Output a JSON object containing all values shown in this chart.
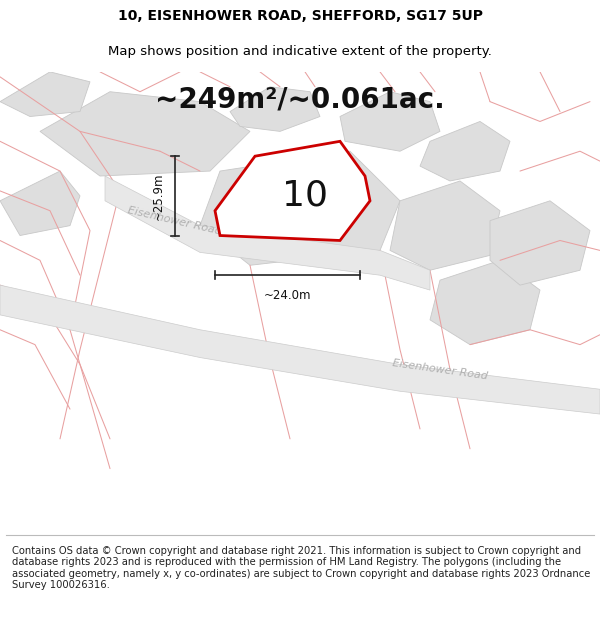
{
  "title_line1": "10, EISENHOWER ROAD, SHEFFORD, SG17 5UP",
  "title_line2": "Map shows position and indicative extent of the property.",
  "area_text": "~249m²/~0.061ac.",
  "dim_height": "~25.9m",
  "dim_width": "~24.0m",
  "plot_label": "10",
  "road_label1": "Eisenhower Road",
  "road_label2": "Eisenhower Road",
  "footer": "Contains OS data © Crown copyright and database right 2021. This information is subject to Crown copyright and database rights 2023 and is reproduced with the permission of HM Land Registry. The polygons (including the associated geometry, namely x, y co-ordinates) are subject to Crown copyright and database rights 2023 Ordnance Survey 100026316.",
  "bg_color": "#ffffff",
  "map_bg": "#f2f2f2",
  "plot_fill": "#ffffff",
  "plot_edge": "#cc0000",
  "block_fill": "#dedede",
  "pink_line": "#e8a0a0",
  "dim_line_color": "#222222",
  "title_fontsize": 10,
  "subtitle_fontsize": 9.5,
  "area_fontsize": 20,
  "footer_fontsize": 7.2
}
